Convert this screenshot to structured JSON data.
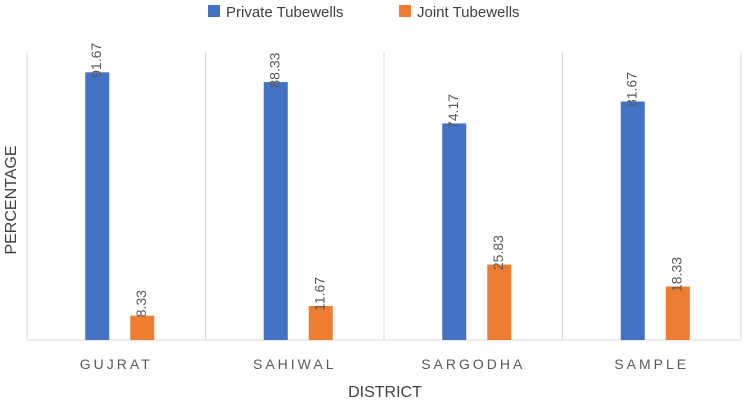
{
  "chart_data": {
    "type": "bar",
    "categories": [
      "GUJRAT",
      "SAHIWAL",
      "SARGODHA",
      "SAMPLE"
    ],
    "series": [
      {
        "name": "Private Tubewells",
        "values": [
          91.67,
          88.33,
          74.17,
          81.67
        ],
        "labels": [
          "91.67",
          "88.33",
          "74.17",
          "81.67"
        ],
        "color": "#4472C4"
      },
      {
        "name": "Joint Tubewells",
        "values": [
          8.33,
          11.67,
          25.83,
          18.33
        ],
        "labels": [
          "8.33",
          "11.67",
          "25.83",
          "18.33"
        ],
        "color": "#ED7D31"
      }
    ],
    "xlabel": "DISTRICT",
    "ylabel": "PERCENTAGE",
    "ylim": [
      0,
      100
    ],
    "grid": false,
    "legend_position": "top"
  }
}
